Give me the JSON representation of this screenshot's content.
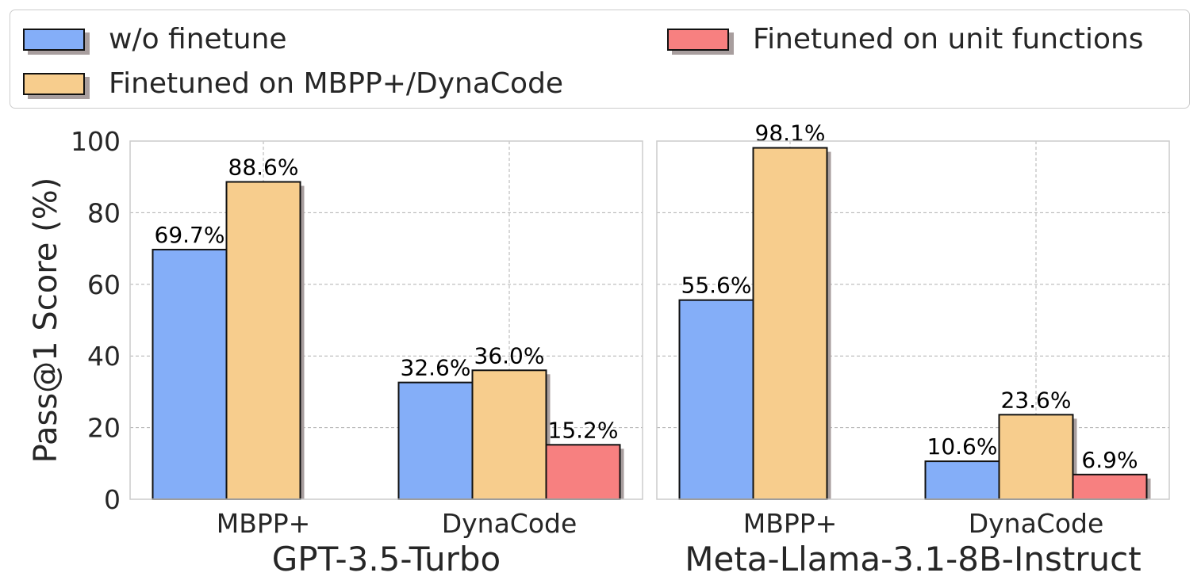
{
  "chart_data": {
    "type": "bar",
    "ylabel": "Pass@1 Score (%)",
    "ylim": [
      0,
      100
    ],
    "yticks": [
      "0",
      "20",
      "40",
      "60",
      "80",
      "100"
    ],
    "grid": true,
    "legend_placement": "top",
    "series": [
      {
        "name": "w/o finetune",
        "color": "#84aef8"
      },
      {
        "name": "Finetuned on MBPP+/DynaCode",
        "color": "#f7cd8d"
      },
      {
        "name": "Finetuned on unit functions",
        "color": "#f78080"
      }
    ],
    "panels": [
      {
        "title": "GPT-3.5-Turbo",
        "categories": [
          "MBPP+",
          "DynaCode"
        ],
        "values": [
          [
            69.7,
            88.6,
            null
          ],
          [
            32.6,
            36.0,
            15.2
          ]
        ],
        "labels": [
          [
            "69.7%",
            "88.6%",
            null
          ],
          [
            "32.6%",
            "36.0%",
            "15.2%"
          ]
        ]
      },
      {
        "title": "Meta-Llama-3.1-8B-Instruct",
        "categories": [
          "MBPP+",
          "DynaCode"
        ],
        "values": [
          [
            55.6,
            98.1,
            null
          ],
          [
            10.6,
            23.6,
            6.9
          ]
        ],
        "labels": [
          [
            "55.6%",
            "98.1%",
            null
          ],
          [
            "10.6%",
            "23.6%",
            "6.9%"
          ]
        ]
      }
    ]
  }
}
